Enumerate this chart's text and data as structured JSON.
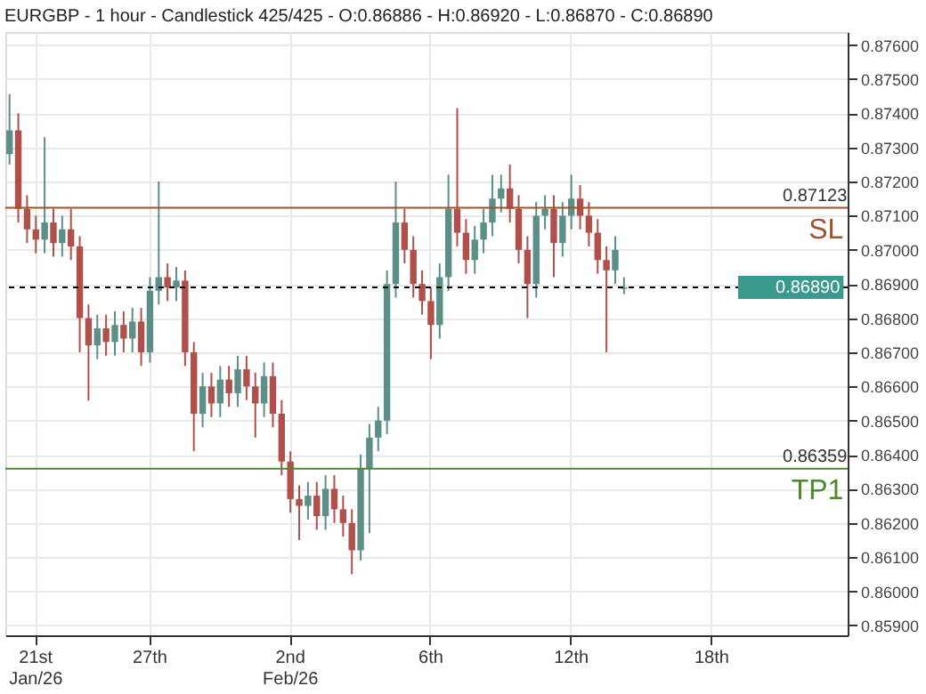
{
  "chart_data": {
    "type": "candlestick",
    "title": "EURGBP - 1 hour - Candlestick    425/425 - O:0.86886 - H:0.86920 - L:0.86870 - C:0.86890",
    "categories": [
      null,
      null,
      null,
      "21st\nJan/26",
      null,
      null,
      null,
      null,
      null,
      null,
      null,
      null,
      null,
      null,
      null,
      null,
      "27th",
      null,
      null,
      null,
      null,
      null,
      null,
      null,
      null,
      null,
      null,
      null,
      null,
      null,
      null,
      null,
      "2nd\nFeb/26",
      null,
      null,
      null,
      null,
      null,
      null,
      null,
      null,
      null,
      null,
      null,
      null,
      null,
      null,
      null,
      "6th",
      null,
      null,
      null,
      null,
      null,
      null,
      null,
      null,
      null,
      null,
      null,
      null,
      null,
      null,
      null,
      "12th",
      null,
      null,
      null,
      null,
      null,
      null,
      null,
      null,
      null,
      null,
      null,
      null,
      null,
      null,
      null,
      "18th",
      null,
      null,
      null,
      null,
      null,
      null,
      null,
      null,
      null,
      null,
      null,
      null,
      null,
      null,
      null
    ],
    "ohlc": [
      [
        0.8728,
        0.87456,
        0.8725,
        0.8735
      ],
      [
        0.8735,
        0.874,
        0.8708,
        0.8712
      ],
      [
        0.8712,
        0.8716,
        0.8702,
        0.8706
      ],
      [
        0.8706,
        0.871,
        0.8699,
        0.8703
      ],
      [
        0.8703,
        0.8733,
        0.8699,
        0.8708
      ],
      [
        0.8708,
        0.8712,
        0.8698,
        0.8702
      ],
      [
        0.8702,
        0.871,
        0.8698,
        0.8706
      ],
      [
        0.8706,
        0.8712,
        0.8697,
        0.8701
      ],
      [
        0.8701,
        0.8704,
        0.867,
        0.868
      ],
      [
        0.868,
        0.8684,
        0.86558,
        0.8672
      ],
      [
        0.8672,
        0.8681,
        0.8668,
        0.8677
      ],
      [
        0.8677,
        0.8681,
        0.8669,
        0.8673
      ],
      [
        0.8673,
        0.8682,
        0.8669,
        0.8678
      ],
      [
        0.8678,
        0.8682,
        0.867,
        0.8674
      ],
      [
        0.8674,
        0.8683,
        0.867,
        0.8679
      ],
      [
        0.8679,
        0.8683,
        0.8666,
        0.867
      ],
      [
        0.867,
        0.8692,
        0.8667,
        0.8688
      ],
      [
        0.8688,
        0.872,
        0.8684,
        0.8692
      ],
      [
        0.8692,
        0.8696,
        0.8685,
        0.8689
      ],
      [
        0.8689,
        0.8695,
        0.8685,
        0.8691
      ],
      [
        0.8691,
        0.8694,
        0.8666,
        0.867
      ],
      [
        0.867,
        0.8673,
        0.8641,
        0.8652
      ],
      [
        0.8652,
        0.8664,
        0.8648,
        0.866
      ],
      [
        0.866,
        0.8664,
        0.8651,
        0.8655
      ],
      [
        0.8655,
        0.8666,
        0.8651,
        0.8662
      ],
      [
        0.8662,
        0.8666,
        0.8654,
        0.8658
      ],
      [
        0.8658,
        0.8669,
        0.8654,
        0.8665
      ],
      [
        0.8665,
        0.8669,
        0.8656,
        0.866
      ],
      [
        0.866,
        0.8664,
        0.8645,
        0.8655
      ],
      [
        0.8655,
        0.8667,
        0.8651,
        0.8663
      ],
      [
        0.8663,
        0.8667,
        0.8648,
        0.8652
      ],
      [
        0.8652,
        0.8656,
        0.8634,
        0.8638
      ],
      [
        0.8638,
        0.8641,
        0.8623,
        0.8627
      ],
      [
        0.8627,
        0.8631,
        0.8615,
        0.8625
      ],
      [
        0.8625,
        0.8632,
        0.8621,
        0.8628
      ],
      [
        0.8628,
        0.8632,
        0.8618,
        0.8622
      ],
      [
        0.8622,
        0.8634,
        0.8618,
        0.863
      ],
      [
        0.863,
        0.8634,
        0.862,
        0.8624
      ],
      [
        0.8624,
        0.8628,
        0.8616,
        0.862
      ],
      [
        0.862,
        0.8624,
        0.8605,
        0.8612
      ],
      [
        0.8612,
        0.864,
        0.8609,
        0.8636
      ],
      [
        0.8636,
        0.8649,
        0.8617,
        0.8645
      ],
      [
        0.8645,
        0.8654,
        0.8641,
        0.865
      ],
      [
        0.865,
        0.8694,
        0.8646,
        0.869
      ],
      [
        0.869,
        0.872,
        0.8686,
        0.8708
      ],
      [
        0.8708,
        0.8712,
        0.8696,
        0.87
      ],
      [
        0.87,
        0.8704,
        0.8686,
        0.869
      ],
      [
        0.869,
        0.8694,
        0.8681,
        0.8685
      ],
      [
        0.8685,
        0.8689,
        0.8668,
        0.8678
      ],
      [
        0.8678,
        0.8696,
        0.8674,
        0.8692
      ],
      [
        0.8692,
        0.8722,
        0.8688,
        0.8712
      ],
      [
        0.8712,
        0.87415,
        0.8701,
        0.8705
      ],
      [
        0.8705,
        0.8709,
        0.8693,
        0.8697
      ],
      [
        0.8697,
        0.8707,
        0.8693,
        0.8703
      ],
      [
        0.8703,
        0.8712,
        0.8699,
        0.8708
      ],
      [
        0.8708,
        0.8722,
        0.8704,
        0.8715
      ],
      [
        0.8715,
        0.8722,
        0.8711,
        0.8718
      ],
      [
        0.8718,
        0.8725,
        0.8708,
        0.8712
      ],
      [
        0.8712,
        0.8716,
        0.8696,
        0.87
      ],
      [
        0.87,
        0.8704,
        0.868,
        0.869
      ],
      [
        0.869,
        0.8714,
        0.8686,
        0.871
      ],
      [
        0.871,
        0.8716,
        0.8706,
        0.8712
      ],
      [
        0.8712,
        0.8716,
        0.8692,
        0.8702
      ],
      [
        0.8702,
        0.8714,
        0.8698,
        0.871
      ],
      [
        0.871,
        0.8722,
        0.8706,
        0.8715
      ],
      [
        0.8715,
        0.8719,
        0.8706,
        0.871
      ],
      [
        0.871,
        0.8714,
        0.8701,
        0.8705
      ],
      [
        0.8705,
        0.8709,
        0.8693,
        0.8697
      ],
      [
        0.8697,
        0.8701,
        0.867,
        0.8694
      ],
      [
        0.8694,
        0.8704,
        0.869,
        0.87
      ],
      [
        0.86886,
        0.8692,
        0.8687,
        0.8689
      ],
      null,
      null,
      null,
      null,
      null,
      null,
      null,
      null,
      null,
      null,
      null,
      null,
      null,
      null,
      null,
      null,
      null,
      null,
      null,
      null,
      null,
      null,
      null,
      null,
      null
    ],
    "ylim": [
      0.85871,
      0.87638
    ],
    "yticks": [
      {
        "value": 0.859,
        "label": "0.85900"
      },
      {
        "value": 0.86,
        "label": "0.86000"
      },
      {
        "value": 0.861,
        "label": "0.86100"
      },
      {
        "value": 0.862,
        "label": "0.86200"
      },
      {
        "value": 0.863,
        "label": "0.86300"
      },
      {
        "value": 0.864,
        "label": "0.86400"
      },
      {
        "value": 0.865,
        "label": "0.86500"
      },
      {
        "value": 0.866,
        "label": "0.86600"
      },
      {
        "value": 0.867,
        "label": "0.86700"
      },
      {
        "value": 0.868,
        "label": "0.86800"
      },
      {
        "value": 0.869,
        "label": "0.86900"
      },
      {
        "value": 0.87,
        "label": "0.87000"
      },
      {
        "value": 0.871,
        "label": "0.87100"
      },
      {
        "value": 0.872,
        "label": "0.87200"
      },
      {
        "value": 0.873,
        "label": "0.87300"
      },
      {
        "value": 0.874,
        "label": "0.87400"
      },
      {
        "value": 0.875,
        "label": "0.87500"
      },
      {
        "value": 0.876,
        "label": "0.87600"
      }
    ],
    "grid": true,
    "ref_lines": [
      {
        "axis": "y",
        "value": 0.87123,
        "label": "SL",
        "color": "#a0522d"
      },
      {
        "axis": "y",
        "value": 0.86359,
        "label": "TP1",
        "color": "#4a8a2a"
      },
      {
        "axis": "y",
        "value": 0.8689,
        "label": "0.86890",
        "color": "#000000",
        "line_style": "dashed"
      }
    ],
    "annotations": [
      "0.87123",
      "0.86359"
    ]
  }
}
